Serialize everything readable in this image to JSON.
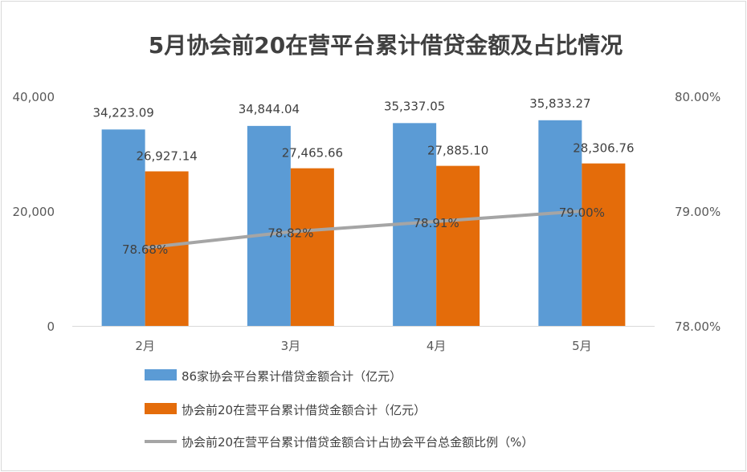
{
  "chart_data": {
    "type": "bar",
    "title": "5月协会前20在营平台累计借贷金额及占比情况",
    "categories": [
      "2月",
      "3月",
      "4月",
      "5月"
    ],
    "left_axis": {
      "ylim": [
        0,
        40000
      ],
      "ticks": [
        "0",
        "20,000",
        "40,000"
      ],
      "tick_values": [
        0,
        20000,
        40000
      ]
    },
    "right_axis": {
      "ylim": [
        78,
        80
      ],
      "ticks": [
        "78.00%",
        "79.00%",
        "80.00%"
      ],
      "tick_values": [
        78,
        79,
        80
      ]
    },
    "series": [
      {
        "name": "86家协会平台累计借贷金额合计（亿元）",
        "type": "bar",
        "axis": "left",
        "color": "#5B9BD5",
        "values": [
          34223.09,
          34844.04,
          35337.05,
          35833.27
        ],
        "labels": [
          "34,223.09",
          "34,844.04",
          "35,337.05",
          "35,833.27"
        ]
      },
      {
        "name": "协会前20在营平台累计借贷金额合计（亿元）",
        "type": "bar",
        "axis": "left",
        "color": "#E46C0A",
        "values": [
          26927.14,
          27465.66,
          27885.1,
          28306.76
        ],
        "labels": [
          "26,927.14",
          "27,465.66",
          "27,885.10",
          "28,306.76"
        ]
      },
      {
        "name": "协会前20在营平台累计借贷金额合计占协会平台总金额比例（%）",
        "type": "line",
        "axis": "right",
        "color": "#A5A5A5",
        "values": [
          78.68,
          78.82,
          78.91,
          79.0
        ],
        "labels": [
          "78.68%",
          "78.82%",
          "78.91%",
          "79.00%"
        ]
      }
    ],
    "legend_position": "bottom-left",
    "grid": false
  }
}
